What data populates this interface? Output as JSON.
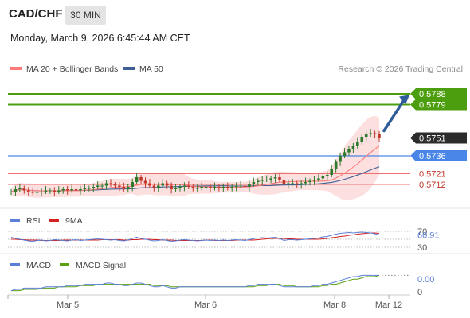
{
  "header": {
    "symbol": "CAD/CHF",
    "timeframe": "30 MIN",
    "datetime": "Monday, March 9, 2026 6:45:44 AM CET"
  },
  "legend": {
    "ma20_bb": "MA 20 + Bollinger Bands",
    "ma50": "MA 50",
    "watermark": "Research © 2026 Trading Central"
  },
  "colors": {
    "up": "#2d7a2d",
    "down": "#c0392b",
    "ma20": "#ff7b7b",
    "ma50": "#3d5f94",
    "bb_fill": "#fbd9d9",
    "resistance_green": "#4d9e0e",
    "support_blue": "#4a86e8",
    "pivot_red": "#f07070",
    "rsi": "#5b7fd6",
    "rsi_ma": "#d42020",
    "macd": "#5b7fd6",
    "macd_signal": "#5aa010",
    "arrow": "#2f5d99"
  },
  "chart_data": [
    {
      "type": "candlestick",
      "title": "",
      "ylim": [
        0.57,
        0.58
      ],
      "x_ticks": [
        "Mar 5",
        "Mar 6",
        "Mar 8",
        "Mar 12"
      ],
      "current_price": "0.5751",
      "levels": [
        {
          "label": "0.5788",
          "value": 0.5788,
          "style": "resistance",
          "color": "#4d9e0e"
        },
        {
          "label": "0.5779",
          "value": 0.5779,
          "style": "resistance",
          "color": "#4d9e0e"
        },
        {
          "label": "0.5736",
          "value": 0.5736,
          "style": "pivot",
          "color": "#4a86e8"
        },
        {
          "label": "0.5721",
          "value": 0.5721,
          "style": "support",
          "color": "#f07070"
        },
        {
          "label": "0.5712",
          "value": 0.5712,
          "style": "support",
          "color": "#f07070"
        }
      ],
      "close_series": [
        0.5706,
        0.5708,
        0.5709,
        0.5707,
        0.5706,
        0.5705,
        0.5706,
        0.5706,
        0.5707,
        0.5707,
        0.5706,
        0.5707,
        0.5708,
        0.5707,
        0.5708,
        0.5707,
        0.5708,
        0.5709,
        0.5709,
        0.571,
        0.5711,
        0.5711,
        0.5713,
        0.5712,
        0.5711,
        0.571,
        0.5708,
        0.571,
        0.5714,
        0.5718,
        0.5715,
        0.5713,
        0.5711,
        0.5709,
        0.5711,
        0.5713,
        0.5711,
        0.5708,
        0.5709,
        0.571,
        0.5711,
        0.571,
        0.5709,
        0.5709,
        0.571,
        0.571,
        0.5709,
        0.571,
        0.5709,
        0.571,
        0.5709,
        0.571,
        0.5711,
        0.5711,
        0.571,
        0.5712,
        0.5714,
        0.5715,
        0.5716,
        0.5716,
        0.5717,
        0.5718,
        0.5716,
        0.5712,
        0.5713,
        0.5713,
        0.5712,
        0.5713,
        0.5714,
        0.5715,
        0.5716,
        0.5717,
        0.5719,
        0.572,
        0.5725,
        0.5731,
        0.5736,
        0.5739,
        0.5742,
        0.5744,
        0.5748,
        0.5752,
        0.5754,
        0.5755,
        0.5754,
        0.5751
      ]
    },
    {
      "type": "line",
      "title": "RSI",
      "series": [
        {
          "name": "RSI"
        },
        {
          "name": "9MA"
        }
      ],
      "ylim": [
        30,
        70
      ],
      "y_ticks": [
        70,
        30
      ],
      "value_label": "60.91",
      "rsi": [
        55,
        52,
        50,
        48,
        46,
        45,
        47,
        48,
        46,
        47,
        49,
        48,
        47,
        46,
        48,
        49,
        47,
        48,
        49,
        50,
        51,
        50,
        49,
        48,
        49,
        47,
        46,
        48,
        52,
        55,
        52,
        50,
        48,
        46,
        47,
        49,
        47,
        45,
        46,
        48,
        49,
        48,
        47,
        46,
        47,
        48,
        47,
        48,
        47,
        48,
        47,
        48,
        49,
        48,
        47,
        49,
        52,
        53,
        54,
        53,
        54,
        55,
        52,
        47,
        49,
        49,
        48,
        49,
        50,
        51,
        52,
        53,
        56,
        57,
        60,
        63,
        65,
        66,
        67,
        66,
        67,
        68,
        67,
        66,
        64,
        60.91
      ],
      "rsi_ma": [
        50,
        50,
        49,
        49,
        48,
        48,
        48,
        47,
        47,
        47,
        47,
        47,
        48,
        48,
        48,
        48,
        48,
        48,
        48,
        48,
        48,
        49,
        49,
        49,
        49,
        49,
        48,
        48,
        49,
        49,
        50,
        50,
        50,
        49,
        49,
        48,
        48,
        48,
        47,
        47,
        47,
        47,
        47,
        47,
        47,
        48,
        48,
        47,
        47,
        47,
        47,
        47,
        48,
        48,
        48,
        48,
        48,
        49,
        50,
        51,
        52,
        52,
        52,
        52,
        51,
        51,
        50,
        50,
        50,
        50,
        50,
        50,
        51,
        52,
        54,
        55,
        57,
        58,
        60,
        61,
        63,
        64,
        65,
        66,
        66,
        65
      ]
    },
    {
      "type": "line",
      "title": "MACD",
      "series": [
        {
          "name": "MACD"
        },
        {
          "name": "MACD Signal"
        }
      ],
      "ylim": [
        -0.0008,
        0.0012
      ],
      "y_ticks": [
        {
          "label": "0.00",
          "value": 0.0005
        },
        {
          "label": "0",
          "value": -0.0005
        }
      ],
      "macd": [
        -0.0004,
        -0.0003,
        -0.0003,
        -0.0002,
        -0.0002,
        -0.0002,
        -0.0002,
        -0.0002,
        -0.0001,
        -0.0001,
        -0.0001,
        -0.0001,
        -0.0001,
        0.0,
        0.0,
        0.0,
        0.0,
        0.0001,
        0.0001,
        0.0001,
        0.0001,
        0.0001,
        0.0002,
        0.0002,
        0.0001,
        0.0001,
        0.0,
        0.0,
        0.0001,
        0.0002,
        0.0002,
        0.0001,
        0.0,
        -0.0001,
        -0.0001,
        0.0,
        -0.0001,
        -0.0002,
        -0.0002,
        -0.0001,
        -0.0001,
        -0.0001,
        -0.0001,
        -0.0001,
        -0.0001,
        -0.0001,
        -0.0001,
        -0.0001,
        -0.0001,
        -0.0001,
        -0.0001,
        -0.0001,
        -0.0001,
        -0.0001,
        -0.0001,
        0.0,
        0.0,
        0.0001,
        0.0001,
        0.0001,
        0.0001,
        0.0001,
        0.0,
        -0.0001,
        -0.0001,
        -0.0001,
        -0.0001,
        -0.0001,
        -0.0001,
        -0.0001,
        0.0,
        0.0,
        0.0001,
        0.0001,
        0.0002,
        0.0003,
        0.0004,
        0.0005,
        0.0006,
        0.0007,
        0.0007,
        0.0008,
        0.0008,
        0.0008,
        0.0008,
        0.0008
      ],
      "signal": [
        -0.0004,
        -0.0004,
        -0.0004,
        -0.0003,
        -0.0003,
        -0.0003,
        -0.0003,
        -0.0002,
        -0.0002,
        -0.0002,
        -0.0002,
        -0.0001,
        -0.0001,
        -0.0001,
        -0.0001,
        -0.0001,
        0.0,
        0.0,
        0.0,
        0.0,
        0.0001,
        0.0001,
        0.0001,
        0.0001,
        0.0001,
        0.0001,
        0.0001,
        0.0001,
        0.0001,
        0.0001,
        0.0001,
        0.0001,
        0.0001,
        0.0,
        0.0,
        0.0,
        0.0,
        -0.0001,
        -0.0001,
        -0.0001,
        -0.0001,
        -0.0001,
        -0.0001,
        -0.0001,
        -0.0001,
        -0.0001,
        -0.0001,
        -0.0001,
        -0.0001,
        -0.0001,
        -0.0001,
        -0.0001,
        -0.0001,
        -0.0001,
        -0.0001,
        -0.0001,
        -0.0001,
        0.0,
        0.0,
        0.0,
        0.0001,
        0.0001,
        0.0001,
        0.0,
        0.0,
        0.0,
        -0.0001,
        -0.0001,
        -0.0001,
        -0.0001,
        -0.0001,
        -0.0001,
        0.0,
        0.0,
        0.0001,
        0.0001,
        0.0002,
        0.0003,
        0.0004,
        0.0005,
        0.0005,
        0.0006,
        0.0007,
        0.0007,
        0.0007,
        0.0008
      ]
    }
  ]
}
